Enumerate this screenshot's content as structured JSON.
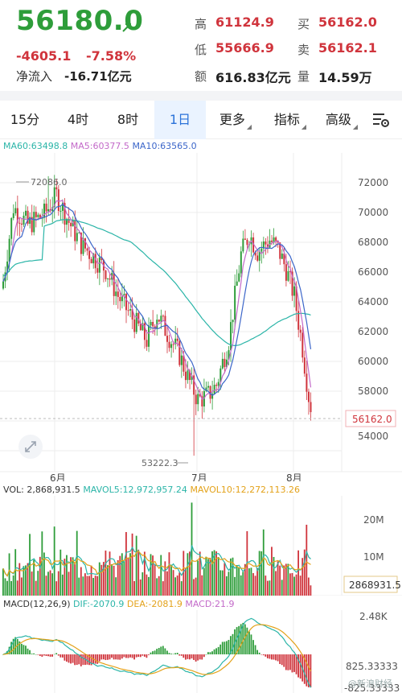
{
  "quote": {
    "price": "56180.0",
    "change": "-4605.1",
    "change_pct": "-7.58%",
    "net_inflow_label": "净流入",
    "net_inflow_value": "-16.71亿元",
    "high_label": "高",
    "high_value": "61124.9",
    "low_label": "低",
    "low_value": "55666.9",
    "amount_label": "额",
    "amount_value": "616.83亿元",
    "bid_label": "买",
    "bid_value": "56162.0",
    "ask_label": "卖",
    "ask_value": "56162.1",
    "volume_label": "量",
    "volume_value": "14.59万"
  },
  "tabs": [
    {
      "label": "15分",
      "active": false,
      "dropdown": false
    },
    {
      "label": "4时",
      "active": false,
      "dropdown": false
    },
    {
      "label": "8时",
      "active": false,
      "dropdown": false
    },
    {
      "label": "1日",
      "active": true,
      "dropdown": false
    },
    {
      "label": "更多",
      "active": false,
      "dropdown": true
    },
    {
      "label": "指标",
      "active": false,
      "dropdown": true
    },
    {
      "label": "高级",
      "active": false,
      "dropdown": true
    }
  ],
  "ma_legend": {
    "ma60": "MA60:63498.8",
    "ma5": "MA5:60377.5",
    "ma10": "MA10:63565.0"
  },
  "colors": {
    "up": "#2e9d3a",
    "down": "#d0343c",
    "ma60": "#2bb5a8",
    "ma5": "#c36ac9",
    "ma10": "#3c66c9",
    "accent": "#2a72d9"
  },
  "chart_data": [
    {
      "type": "candlestick",
      "title": "",
      "y_ticks": [
        "72000",
        "70000",
        "68000",
        "66000",
        "64000",
        "62000",
        "60000",
        "58000",
        "56000",
        "54000"
      ],
      "x_ticks": [
        "6月",
        "7月",
        "8月"
      ],
      "ylim": [
        53000,
        73000
      ],
      "annotations": {
        "high": "72086.0",
        "low": "53222.3",
        "current": "56162.0"
      },
      "last_price": 56162.0,
      "grid": true
    },
    {
      "type": "bar",
      "title": "",
      "legend": {
        "vol": "VOL: 2,868,931.5",
        "mavol5": "MAVOL5:12,972,957.24",
        "mavol10": "MAVOL10:12,272,113.26"
      },
      "y_ticks": [
        "20M",
        "10M"
      ],
      "last_value_label": "2868931.5",
      "ylim": [
        0,
        27000000
      ]
    },
    {
      "type": "bar",
      "title": "",
      "legend": {
        "name": "MACD(12,26,9)",
        "dif": "DIF:-2070.9",
        "dea": "DEA:-2081.9",
        "macd": "MACD:21.9"
      },
      "y_ticks": [
        "2.48K",
        "825.33333",
        "-825.33333"
      ],
      "ylim": [
        -1100,
        2700
      ]
    }
  ],
  "watermark": "@新浪财经"
}
